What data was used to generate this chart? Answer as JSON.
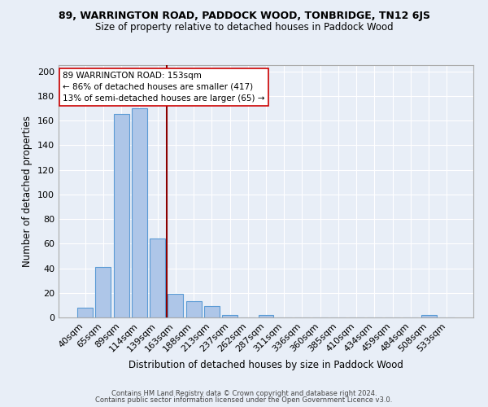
{
  "title": "89, WARRINGTON ROAD, PADDOCK WOOD, TONBRIDGE, TN12 6JS",
  "subtitle": "Size of property relative to detached houses in Paddock Wood",
  "xlabel": "Distribution of detached houses by size in Paddock Wood",
  "ylabel": "Number of detached properties",
  "categories": [
    "40sqm",
    "65sqm",
    "89sqm",
    "114sqm",
    "139sqm",
    "163sqm",
    "188sqm",
    "213sqm",
    "237sqm",
    "262sqm",
    "287sqm",
    "311sqm",
    "336sqm",
    "360sqm",
    "385sqm",
    "410sqm",
    "434sqm",
    "459sqm",
    "484sqm",
    "508sqm",
    "533sqm"
  ],
  "values": [
    8,
    41,
    165,
    170,
    64,
    19,
    13,
    9,
    2,
    0,
    2,
    0,
    0,
    0,
    0,
    0,
    0,
    0,
    0,
    2,
    0
  ],
  "bar_color": "#aec6e8",
  "bar_edge_color": "#5b9bd5",
  "bg_color": "#e8eef7",
  "grid_color": "#ffffff",
  "vline_x": 4.5,
  "vline_color": "#8b0000",
  "annotation_line1": "89 WARRINGTON ROAD: 153sqm",
  "annotation_line2": "← 86% of detached houses are smaller (417)",
  "annotation_line3": "13% of semi-detached houses are larger (65) →",
  "annotation_box_color": "#ffffff",
  "annotation_box_edge": "#cc0000",
  "footer1": "Contains HM Land Registry data © Crown copyright and database right 2024.",
  "footer2": "Contains public sector information licensed under the Open Government Licence v3.0.",
  "ylim": [
    0,
    205
  ],
  "yticks": [
    0,
    20,
    40,
    60,
    80,
    100,
    120,
    140,
    160,
    180,
    200
  ]
}
